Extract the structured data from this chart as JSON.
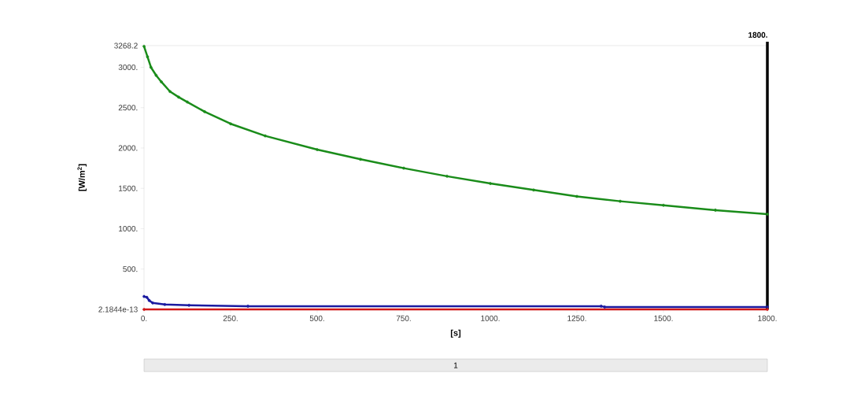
{
  "chart_data": {
    "type": "line",
    "xlabel": "[s]",
    "ylabel": "[W/m$^{2}$]",
    "series": [
      {
        "color": "#1a8c1a",
        "x": [
          0,
          10,
          20,
          35,
          50,
          75,
          100,
          125,
          175,
          250,
          350,
          500,
          625,
          750,
          875,
          1000,
          1125,
          1250,
          1375,
          1500,
          1650,
          1800
        ],
        "values": [
          3260,
          3130,
          3000,
          2900,
          2820,
          2700,
          2630,
          2570,
          2450,
          2300,
          2150,
          1980,
          1860,
          1750,
          1650,
          1560,
          1480,
          1400,
          1340,
          1290,
          1230,
          1180
        ]
      },
      {
        "color": "#1a1aa0",
        "x": [
          0,
          8,
          15,
          25,
          60,
          130,
          300,
          1320,
          1330,
          1800
        ],
        "values": [
          160,
          150,
          110,
          80,
          60,
          50,
          40,
          40,
          30,
          30
        ]
      },
      {
        "color": "#d01818",
        "x": [
          0,
          1800
        ],
        "values": [
          2.1844e-13,
          2.1844e-13
        ]
      }
    ],
    "xlim": [
      0,
      1800
    ],
    "ylim": [
      2.1844e-13,
      3268.2
    ],
    "xticks": [
      {
        "value": 0,
        "label": "0."
      },
      {
        "value": 250,
        "label": "250."
      },
      {
        "value": 500,
        "label": "500."
      },
      {
        "value": 750,
        "label": "750."
      },
      {
        "value": 1000,
        "label": "1000."
      },
      {
        "value": 1250,
        "label": "1250."
      },
      {
        "value": 1500,
        "label": "1500."
      },
      {
        "value": 1800,
        "label": "1800."
      }
    ],
    "yticks": [
      {
        "value": 2.1844e-13,
        "label": "2.1844e-13"
      },
      {
        "value": 500,
        "label": "500."
      },
      {
        "value": 1000,
        "label": "1000."
      },
      {
        "value": 1500,
        "label": "1500."
      },
      {
        "value": 2000,
        "label": "2000."
      },
      {
        "value": 2500,
        "label": "2500."
      },
      {
        "value": 3000,
        "label": "3000."
      },
      {
        "value": 3268.2,
        "label": "3268.2"
      }
    ],
    "ref_lines": [
      {
        "axis": "x",
        "value": 1800,
        "label": "1800.",
        "color": "#000000"
      }
    ],
    "annotations": [
      "1"
    ],
    "marker": "circle",
    "grid": false
  }
}
